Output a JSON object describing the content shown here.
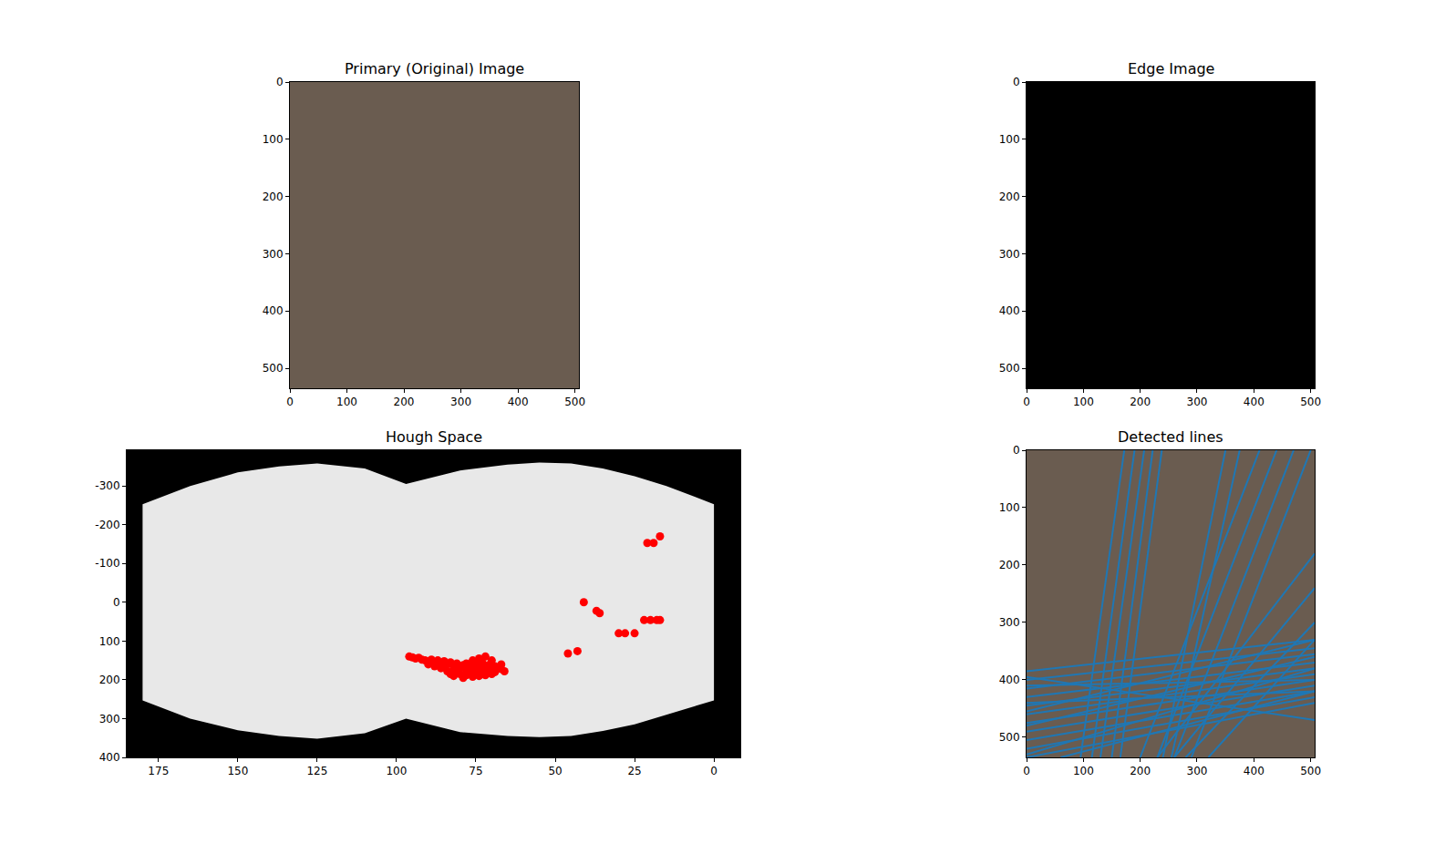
{
  "chart_data": [
    {
      "type": "image",
      "title": "Primary (Original) Image",
      "color": "#6a5c50",
      "xlim": [
        0,
        507
      ],
      "ylim": [
        535,
        0
      ],
      "xticks": [
        0,
        100,
        200,
        300,
        400,
        500
      ],
      "yticks": [
        0,
        100,
        200,
        300,
        400,
        500
      ]
    },
    {
      "type": "image",
      "title": "Edge Image",
      "color": "#000000",
      "xlim": [
        0,
        507
      ],
      "ylim": [
        535,
        0
      ],
      "xticks": [
        0,
        100,
        200,
        300,
        400,
        500
      ],
      "yticks": [
        0,
        100,
        200,
        300,
        400,
        500
      ]
    },
    {
      "type": "scatter",
      "title": "Hough Space",
      "color": "#ff0000",
      "marker": "circle",
      "xlim": [
        185,
        -8.3
      ],
      "ylim": [
        400,
        -392
      ],
      "xticks": [
        175,
        150,
        125,
        100,
        75,
        50,
        25,
        0
      ],
      "yticks": [
        -300,
        -200,
        -100,
        0,
        100,
        200,
        300,
        400
      ],
      "band": {
        "color": "#e8e8e8",
        "x": [
          180,
          165,
          150,
          137,
          125,
          110,
          97,
          90,
          80,
          65,
          55,
          45,
          35,
          25,
          15,
          0
        ],
        "lower": [
          -253,
          -300,
          -335,
          -350,
          -358,
          -345,
          -305,
          -320,
          -340,
          -355,
          -360,
          -358,
          -345,
          -325,
          -300,
          -253
        ],
        "upper": [
          253,
          300,
          330,
          345,
          352,
          338,
          300,
          315,
          335,
          345,
          348,
          345,
          332,
          315,
          290,
          253
        ]
      },
      "x": [
        96,
        95,
        94,
        93,
        92,
        91,
        90,
        89,
        88,
        87,
        86,
        85,
        84,
        83,
        82,
        81,
        80,
        79,
        78,
        77,
        76,
        75,
        74,
        73,
        72,
        71,
        70,
        69,
        68,
        67,
        66,
        86,
        84,
        83,
        82,
        80,
        79,
        78,
        77,
        76,
        75,
        74,
        73,
        72,
        71,
        70,
        85,
        81,
        78,
        76,
        74,
        72,
        70,
        88,
        90,
        73,
        69,
        67,
        82,
        87,
        46,
        43,
        41,
        37,
        36,
        30,
        28,
        25,
        22,
        20,
        18,
        17,
        21,
        19,
        17
      ],
      "values": [
        140,
        142,
        145,
        143,
        148,
        150,
        152,
        148,
        155,
        150,
        158,
        152,
        160,
        155,
        165,
        158,
        170,
        162,
        175,
        165,
        172,
        160,
        168,
        155,
        170,
        162,
        175,
        165,
        170,
        160,
        178,
        170,
        178,
        185,
        190,
        185,
        195,
        188,
        180,
        192,
        185,
        190,
        182,
        188,
        178,
        185,
        165,
        178,
        158,
        150,
        145,
        140,
        150,
        165,
        160,
        175,
        180,
        172,
        172,
        162,
        132,
        126,
        0,
        22,
        28,
        80,
        80,
        80,
        46,
        46,
        46,
        46,
        -153,
        -153,
        -170
      ]
    },
    {
      "type": "image",
      "title": "Detected lines",
      "color": "#6a5c50",
      "xlim": [
        0,
        507
      ],
      "ylim": [
        535,
        0
      ],
      "xticks": [
        0,
        100,
        200,
        300,
        400,
        500
      ],
      "yticks": [
        0,
        100,
        200,
        300,
        400,
        500
      ],
      "series": [
        {
          "color": "#1f77b4",
          "type": "line",
          "lines": [
            [
              0,
              385,
              507,
              330
            ],
            [
              0,
              400,
              507,
              345
            ],
            [
              0,
              415,
              507,
              355
            ],
            [
              0,
              430,
              507,
              370
            ],
            [
              0,
              445,
              507,
              380
            ],
            [
              0,
              460,
              507,
              390
            ],
            [
              0,
              475,
              507,
              400
            ],
            [
              0,
              490,
              507,
              410
            ],
            [
              0,
              505,
              507,
              420
            ],
            [
              0,
              520,
              507,
              430
            ],
            [
              0,
              535,
              507,
              440
            ],
            [
              0,
              410,
              507,
              400
            ],
            [
              0,
              440,
              507,
              420
            ],
            [
              0,
              480,
              507,
              360
            ],
            [
              0,
              530,
              507,
              380
            ],
            [
              0,
              455,
              507,
              330
            ],
            [
              60,
              535,
              507,
              420
            ],
            [
              0,
              395,
              507,
              470
            ],
            [
              172,
              0,
              95,
              535
            ],
            [
              190,
              0,
              115,
              535
            ],
            [
              207,
              0,
              130,
              535
            ],
            [
              222,
              0,
              150,
              535
            ],
            [
              238,
              0,
              165,
              535
            ],
            [
              350,
              0,
              240,
              535
            ],
            [
              375,
              0,
              255,
              535
            ],
            [
              410,
              0,
              200,
              535
            ],
            [
              440,
              0,
              230,
              535
            ],
            [
              470,
              0,
              260,
              535
            ],
            [
              500,
              0,
              290,
              535
            ],
            [
              507,
              180,
              230,
              535
            ],
            [
              507,
              240,
              260,
              535
            ],
            [
              507,
              300,
              280,
              535
            ],
            [
              507,
              330,
              320,
              535
            ]
          ]
        }
      ]
    }
  ]
}
